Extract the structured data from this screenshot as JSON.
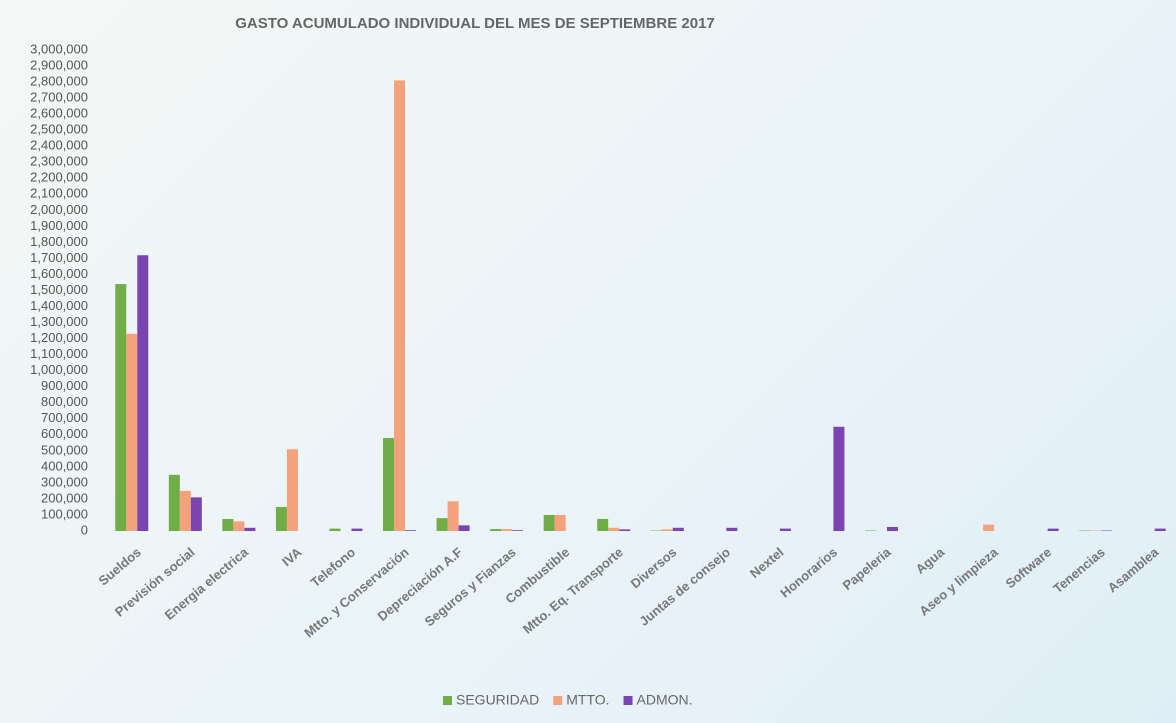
{
  "chart_data": {
    "type": "bar",
    "title": "GASTO ACUMULADO INDIVIDUAL DEL MES DE SEPTIEMBRE 2017",
    "categories": [
      "Sueldos",
      "Previsión social",
      "Energia electrica",
      "IVA",
      "Telefono",
      "Mtto. y Conservación",
      "Depreciación A.F",
      "Seguros y Fianzas",
      "Combustible",
      "Mtto. Eq. Transporte",
      "Diversos",
      "Juntas de consejo",
      "Nextel",
      "Honorarios",
      "Papeleria",
      "Agua",
      "Aseo y limpieza",
      "Software",
      "Tenencias",
      "Asamblea"
    ],
    "series": [
      {
        "name": "SEGURIDAD",
        "color": "#70ad47",
        "values": [
          1540000,
          350000,
          75000,
          150000,
          15000,
          580000,
          80000,
          12000,
          100000,
          75000,
          3000,
          0,
          0,
          0,
          3000,
          0,
          0,
          0,
          3000,
          0
        ]
      },
      {
        "name": "MTTO.",
        "color": "#f4a27c",
        "values": [
          1230000,
          250000,
          60000,
          510000,
          0,
          2810000,
          185000,
          12000,
          100000,
          20000,
          10000,
          0,
          0,
          0,
          0,
          0,
          40000,
          0,
          3000,
          0
        ]
      },
      {
        "name": "ADMON.",
        "color": "#7a45b0",
        "values": [
          1720000,
          210000,
          20000,
          0,
          15000,
          5000,
          35000,
          5000,
          0,
          10000,
          20000,
          20000,
          15000,
          650000,
          25000,
          0,
          0,
          15000,
          3000,
          15000
        ]
      }
    ],
    "ylim": [
      0,
      3000000
    ],
    "yticks": [
      0,
      {
        "value": 100000,
        "label": "100,000"
      },
      {
        "value": 200000,
        "label": "200,000"
      },
      {
        "value": 300000,
        "label": "300,000"
      },
      {
        "value": 400000,
        "label": "400,000"
      },
      {
        "value": 500000,
        "label": "500,000"
      },
      {
        "value": 600000,
        "label": "600,000"
      },
      {
        "value": 700000,
        "label": "700,000"
      },
      {
        "value": 800000,
        "label": "800,000"
      },
      {
        "value": 900000,
        "label": "900,000"
      },
      {
        "value": 1000000,
        "label": "1,000,000"
      },
      {
        "value": 1100000,
        "label": "1,100,000"
      },
      {
        "value": 1200000,
        "label": "1,200,000"
      },
      {
        "value": 1300000,
        "label": "1,300,000"
      },
      {
        "value": 1400000,
        "label": "1,400,000"
      },
      {
        "value": 1500000,
        "label": "1,500,000"
      },
      {
        "value": 1600000,
        "label": "1,600,000"
      },
      {
        "value": 1700000,
        "label": "1,700,000"
      },
      {
        "value": 1800000,
        "label": "1,800,000"
      },
      {
        "value": 1900000,
        "label": "1,900,000"
      },
      {
        "value": 2000000,
        "label": "2,000,000"
      },
      {
        "value": 2100000,
        "label": "2,100,000"
      },
      {
        "value": 2200000,
        "label": "2,200,000"
      },
      {
        "value": 2300000,
        "label": "2,300,000"
      },
      {
        "value": 2400000,
        "label": "2,400,000"
      },
      {
        "value": 2500000,
        "label": "2,500,000"
      },
      {
        "value": 2600000,
        "label": "2,600,000"
      },
      {
        "value": 2700000,
        "label": "2,700,000"
      },
      {
        "value": 2800000,
        "label": "2,800,000"
      },
      {
        "value": 2900000,
        "label": "2,900,000"
      },
      {
        "value": 3000000,
        "label": "3,000,000"
      }
    ],
    "grid": false,
    "legend": "bottom"
  }
}
